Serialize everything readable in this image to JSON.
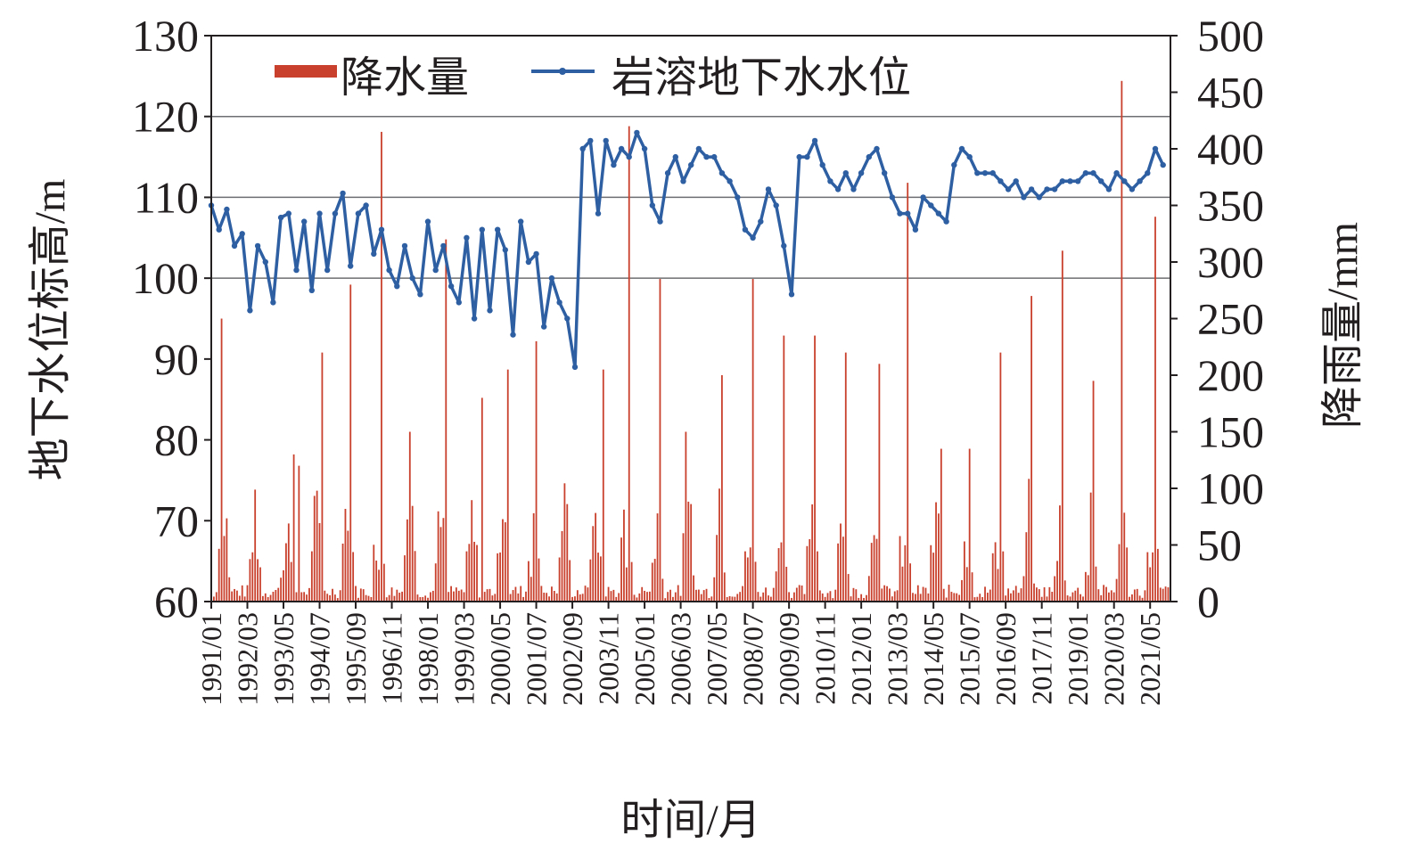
{
  "chart_data": {
    "type": "bar+line",
    "title": "",
    "xlabel": "时间/月",
    "ylabel_left": "地下水位标高/m",
    "ylabel_right": "降雨量/mm",
    "ylim_left": [
      60,
      130
    ],
    "yticks_left": [
      "60",
      "70",
      "80",
      "90",
      "100",
      "110",
      "120",
      "130"
    ],
    "ylim_right": [
      0,
      500
    ],
    "yticks_right": [
      "0",
      "50",
      "100",
      "150",
      "200",
      "250",
      "300",
      "350",
      "400",
      "450",
      "500"
    ],
    "x_tick_labels": [
      "1991/01",
      "1992/03",
      "1993/05",
      "1994/07",
      "1995/09",
      "1996/11",
      "1998/01",
      "1999/03",
      "2000/05",
      "2001/07",
      "2002/09",
      "2003/11",
      "2005/01",
      "2006/03",
      "2007/05",
      "2008/07",
      "2009/09",
      "2010/11",
      "2012/01",
      "2013/03",
      "2014/05",
      "2015/07",
      "2016/09",
      "2017/11",
      "2019/01",
      "2020/03",
      "2021/05"
    ],
    "grid": "horizontal at 100, 110, 120 (left axis)",
    "legend": "top-left",
    "colors": {
      "rain": "#c9402c",
      "water": "#2e5fa3"
    },
    "series": [
      {
        "name": "降水量",
        "type": "bar",
        "axis": "right",
        "color": "#c9402c",
        "peaks": [
          {
            "date": "1991/05",
            "value": 250
          },
          {
            "date": "1993/09",
            "value": 130
          },
          {
            "date": "1993/11",
            "value": 120
          },
          {
            "date": "1994/08",
            "value": 220
          },
          {
            "date": "1995/07",
            "value": 280
          },
          {
            "date": "1996/07",
            "value": 415
          },
          {
            "date": "1997/06",
            "value": 150
          },
          {
            "date": "1998/08",
            "value": 320
          },
          {
            "date": "1999/10",
            "value": 180
          },
          {
            "date": "2000/08",
            "value": 205
          },
          {
            "date": "2001/07",
            "value": 230
          },
          {
            "date": "2003/09",
            "value": 205
          },
          {
            "date": "2004/07",
            "value": 420
          },
          {
            "date": "2005/07",
            "value": 285
          },
          {
            "date": "2006/05",
            "value": 150
          },
          {
            "date": "2007/07",
            "value": 200
          },
          {
            "date": "2008/07",
            "value": 285
          },
          {
            "date": "2009/07",
            "value": 235
          },
          {
            "date": "2010/07",
            "value": 235
          },
          {
            "date": "2011/07",
            "value": 220
          },
          {
            "date": "2012/08",
            "value": 210
          },
          {
            "date": "2013/07",
            "value": 370
          },
          {
            "date": "2014/08",
            "value": 135
          },
          {
            "date": "2015/07",
            "value": 135
          },
          {
            "date": "2016/07",
            "value": 220
          },
          {
            "date": "2017/07",
            "value": 270
          },
          {
            "date": "2018/07",
            "value": 310
          },
          {
            "date": "2019/07",
            "value": 195
          },
          {
            "date": "2020/06",
            "value": 460
          },
          {
            "date": "2021/07",
            "value": 340
          }
        ]
      },
      {
        "name": "岩溶地下水水位",
        "type": "line",
        "axis": "left",
        "color": "#2e5fa3",
        "points": [
          {
            "date": "1991/01",
            "value": 109.0
          },
          {
            "date": "1991/04",
            "value": 106.0
          },
          {
            "date": "1991/07",
            "value": 108.5
          },
          {
            "date": "1991/10",
            "value": 104.0
          },
          {
            "date": "1992/01",
            "value": 105.5
          },
          {
            "date": "1992/04",
            "value": 96.0
          },
          {
            "date": "1992/07",
            "value": 104.0
          },
          {
            "date": "1992/10",
            "value": 102.0
          },
          {
            "date": "1993/01",
            "value": 97.0
          },
          {
            "date": "1993/04",
            "value": 107.5
          },
          {
            "date": "1993/07",
            "value": 108.0
          },
          {
            "date": "1993/10",
            "value": 101.0
          },
          {
            "date": "1994/01",
            "value": 107.0
          },
          {
            "date": "1994/04",
            "value": 98.5
          },
          {
            "date": "1994/07",
            "value": 108.0
          },
          {
            "date": "1994/10",
            "value": 101.0
          },
          {
            "date": "1995/01",
            "value": 108.0
          },
          {
            "date": "1995/04",
            "value": 110.5
          },
          {
            "date": "1995/07",
            "value": 101.5
          },
          {
            "date": "1995/10",
            "value": 108.0
          },
          {
            "date": "1996/01",
            "value": 109.0
          },
          {
            "date": "1996/04",
            "value": 103.0
          },
          {
            "date": "1996/07",
            "value": 106.0
          },
          {
            "date": "1996/10",
            "value": 101.0
          },
          {
            "date": "1997/01",
            "value": 99.0
          },
          {
            "date": "1997/04",
            "value": 104.0
          },
          {
            "date": "1997/07",
            "value": 100.0
          },
          {
            "date": "1997/10",
            "value": 98.0
          },
          {
            "date": "1998/01",
            "value": 107.0
          },
          {
            "date": "1998/04",
            "value": 101.0
          },
          {
            "date": "1998/07",
            "value": 104.0
          },
          {
            "date": "1998/10",
            "value": 99.0
          },
          {
            "date": "1999/01",
            "value": 97.0
          },
          {
            "date": "1999/04",
            "value": 105.0
          },
          {
            "date": "1999/07",
            "value": 95.0
          },
          {
            "date": "1999/10",
            "value": 106.0
          },
          {
            "date": "2000/01",
            "value": 96.0
          },
          {
            "date": "2000/04",
            "value": 106.0
          },
          {
            "date": "2000/07",
            "value": 103.5
          },
          {
            "date": "2000/10",
            "value": 93.0
          },
          {
            "date": "2001/01",
            "value": 107.0
          },
          {
            "date": "2001/04",
            "value": 102.0
          },
          {
            "date": "2001/07",
            "value": 103.0
          },
          {
            "date": "2001/10",
            "value": 94.0
          },
          {
            "date": "2002/01",
            "value": 100.0
          },
          {
            "date": "2002/04",
            "value": 97.0
          },
          {
            "date": "2002/07",
            "value": 95.0
          },
          {
            "date": "2002/10",
            "value": 89.0
          },
          {
            "date": "2003/01",
            "value": 116.0
          },
          {
            "date": "2003/04",
            "value": 117.0
          },
          {
            "date": "2003/07",
            "value": 108.0
          },
          {
            "date": "2003/10",
            "value": 117.0
          },
          {
            "date": "2004/01",
            "value": 114.0
          },
          {
            "date": "2004/04",
            "value": 116.0
          },
          {
            "date": "2004/07",
            "value": 115.0
          },
          {
            "date": "2004/10",
            "value": 118.0
          },
          {
            "date": "2005/01",
            "value": 116.0
          },
          {
            "date": "2005/04",
            "value": 109.0
          },
          {
            "date": "2005/07",
            "value": 107.0
          },
          {
            "date": "2005/10",
            "value": 113.0
          },
          {
            "date": "2006/01",
            "value": 115.0
          },
          {
            "date": "2006/04",
            "value": 112.0
          },
          {
            "date": "2006/07",
            "value": 114.0
          },
          {
            "date": "2006/10",
            "value": 116.0
          },
          {
            "date": "2007/01",
            "value": 115.0
          },
          {
            "date": "2007/04",
            "value": 115.0
          },
          {
            "date": "2007/07",
            "value": 113.0
          },
          {
            "date": "2007/10",
            "value": 112.0
          },
          {
            "date": "2008/01",
            "value": 110.0
          },
          {
            "date": "2008/04",
            "value": 106.0
          },
          {
            "date": "2008/07",
            "value": 105.0
          },
          {
            "date": "2008/10",
            "value": 107.0
          },
          {
            "date": "2009/01",
            "value": 111.0
          },
          {
            "date": "2009/04",
            "value": 109.0
          },
          {
            "date": "2009/07",
            "value": 104.0
          },
          {
            "date": "2009/10",
            "value": 98.0
          },
          {
            "date": "2010/01",
            "value": 115.0
          },
          {
            "date": "2010/04",
            "value": 115.0
          },
          {
            "date": "2010/07",
            "value": 117.0
          },
          {
            "date": "2010/10",
            "value": 114.0
          },
          {
            "date": "2011/01",
            "value": 112.0
          },
          {
            "date": "2011/04",
            "value": 111.0
          },
          {
            "date": "2011/07",
            "value": 113.0
          },
          {
            "date": "2011/10",
            "value": 111.0
          },
          {
            "date": "2012/01",
            "value": 113.0
          },
          {
            "date": "2012/04",
            "value": 115.0
          },
          {
            "date": "2012/07",
            "value": 116.0
          },
          {
            "date": "2012/10",
            "value": 113.0
          },
          {
            "date": "2013/01",
            "value": 110.0
          },
          {
            "date": "2013/04",
            "value": 108.0
          },
          {
            "date": "2013/07",
            "value": 108.0
          },
          {
            "date": "2013/10",
            "value": 106.0
          },
          {
            "date": "2014/01",
            "value": 110.0
          },
          {
            "date": "2014/04",
            "value": 109.0
          },
          {
            "date": "2014/07",
            "value": 108.0
          },
          {
            "date": "2014/10",
            "value": 107.0
          },
          {
            "date": "2015/01",
            "value": 114.0
          },
          {
            "date": "2015/04",
            "value": 116.0
          },
          {
            "date": "2015/07",
            "value": 115.0
          },
          {
            "date": "2015/10",
            "value": 113.0
          },
          {
            "date": "2016/01",
            "value": 113.0
          },
          {
            "date": "2016/04",
            "value": 113.0
          },
          {
            "date": "2016/07",
            "value": 112.0
          },
          {
            "date": "2016/10",
            "value": 111.0
          },
          {
            "date": "2017/01",
            "value": 112.0
          },
          {
            "date": "2017/04",
            "value": 110.0
          },
          {
            "date": "2017/07",
            "value": 111.0
          },
          {
            "date": "2017/10",
            "value": 110.0
          },
          {
            "date": "2018/01",
            "value": 111.0
          },
          {
            "date": "2018/04",
            "value": 111.0
          },
          {
            "date": "2018/07",
            "value": 112.0
          },
          {
            "date": "2018/10",
            "value": 112.0
          },
          {
            "date": "2019/01",
            "value": 112.0
          },
          {
            "date": "2019/04",
            "value": 113.0
          },
          {
            "date": "2019/07",
            "value": 113.0
          },
          {
            "date": "2019/10",
            "value": 112.0
          },
          {
            "date": "2020/01",
            "value": 111.0
          },
          {
            "date": "2020/04",
            "value": 113.0
          },
          {
            "date": "2020/07",
            "value": 112.0
          },
          {
            "date": "2020/10",
            "value": 111.0
          },
          {
            "date": "2021/01",
            "value": 112.0
          },
          {
            "date": "2021/04",
            "value": 113.0
          },
          {
            "date": "2021/07",
            "value": 116.0
          },
          {
            "date": "2021/10",
            "value": 114.0
          }
        ]
      }
    ]
  }
}
